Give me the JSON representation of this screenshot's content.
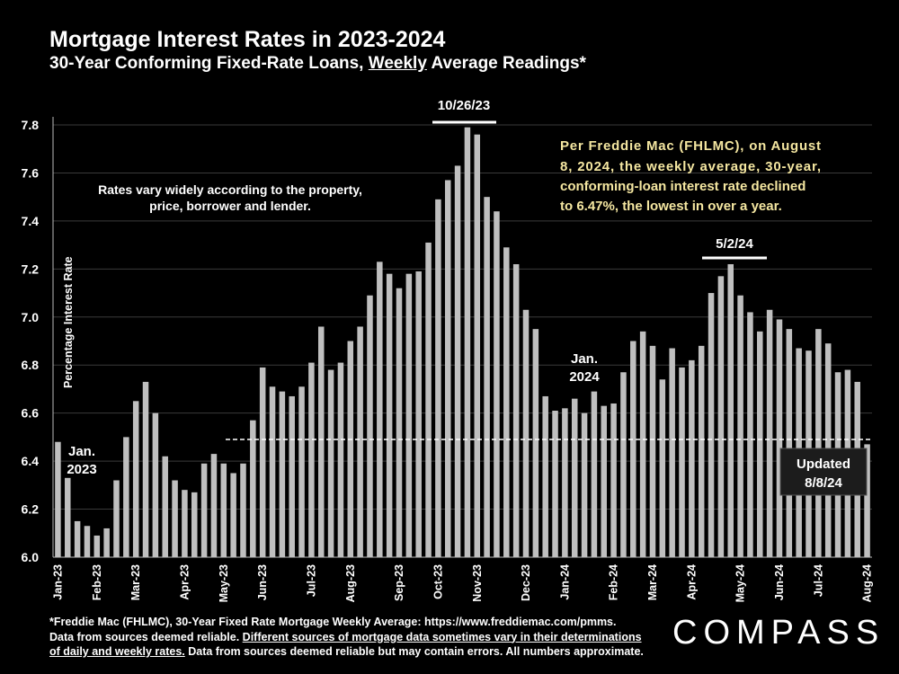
{
  "header": {
    "title": "Mortgage Interest Rates in 2023-2024",
    "subtitle_pre": "30-Year Conforming Fixed-Rate Loans, ",
    "subtitle_underlined": "Weekly",
    "subtitle_post": " Average Readings*"
  },
  "chart_data": {
    "type": "bar",
    "ylabel": "Percentage Interest Rate",
    "ylim": [
      6.0,
      7.8
    ],
    "yticks": [
      "6.0",
      "6.2",
      "6.4",
      "6.6",
      "6.8",
      "7.0",
      "7.2",
      "7.4",
      "7.6",
      "7.8"
    ],
    "grid": true,
    "bar_color": "#bfbfbf",
    "reference_line": 6.49,
    "month_labels": [
      {
        "label": "Jan-23",
        "index": 0
      },
      {
        "label": "Feb-23",
        "index": 4
      },
      {
        "label": "Mar-23",
        "index": 8
      },
      {
        "label": "Apr-23",
        "index": 13
      },
      {
        "label": "May-23",
        "index": 17
      },
      {
        "label": "Jun-23",
        "index": 21
      },
      {
        "label": "Jul-23",
        "index": 26
      },
      {
        "label": "Aug-23",
        "index": 30
      },
      {
        "label": "Sep-23",
        "index": 35
      },
      {
        "label": "Oct-23",
        "index": 39
      },
      {
        "label": "Nov-23",
        "index": 43
      },
      {
        "label": "Dec-23",
        "index": 48
      },
      {
        "label": "Jan-24",
        "index": 52
      },
      {
        "label": "Feb-24",
        "index": 57
      },
      {
        "label": "Mar-24",
        "index": 61
      },
      {
        "label": "Apr-24",
        "index": 65
      },
      {
        "label": "May-24",
        "index": 70
      },
      {
        "label": "Jun-24",
        "index": 74
      },
      {
        "label": "Jul-24",
        "index": 78
      },
      {
        "label": "Aug-24",
        "index": 83
      }
    ],
    "values": [
      6.48,
      6.33,
      6.15,
      6.13,
      6.09,
      6.12,
      6.32,
      6.5,
      6.65,
      6.73,
      6.6,
      6.42,
      6.32,
      6.28,
      6.27,
      6.39,
      6.43,
      6.39,
      6.35,
      6.39,
      6.57,
      6.79,
      6.71,
      6.69,
      6.67,
      6.71,
      6.81,
      6.96,
      6.78,
      6.81,
      6.9,
      6.96,
      7.09,
      7.23,
      7.18,
      7.12,
      7.18,
      7.19,
      7.31,
      7.49,
      7.57,
      7.63,
      7.79,
      7.76,
      7.5,
      7.44,
      7.29,
      7.22,
      7.03,
      6.95,
      6.67,
      6.61,
      6.62,
      6.66,
      6.6,
      6.69,
      6.63,
      6.64,
      6.77,
      6.9,
      6.94,
      6.88,
      6.74,
      6.87,
      6.79,
      6.82,
      6.88,
      7.1,
      7.17,
      7.22,
      7.09,
      7.02,
      6.94,
      7.03,
      6.99,
      6.95,
      6.87,
      6.86,
      6.95,
      6.89,
      6.77,
      6.78,
      6.73,
      6.47
    ],
    "annotations": {
      "peak_label": "10/26/23",
      "may_label": "5/2/24",
      "jan23_line1": "Jan.",
      "jan23_line2": "2023",
      "jan24_line1": "Jan.",
      "jan24_line2": "2024",
      "note_line1": "Rates vary widely according to the property,",
      "note_line2": "price, borrower and lender.",
      "fhlmc_lines": [
        "Per Freddie Mac (FHLMC), on August",
        "8, 2024, the weekly average, 30-year,",
        "conforming-loan interest rate declined",
        "to 6.47%, the lowest in over a year."
      ],
      "updated_line1": "Updated",
      "updated_line2": "8/8/24"
    }
  },
  "footer": {
    "line1": "*Freddie Mac (FHLMC), 30-Year Fixed Rate Mortgage Weekly Average:  https://www.freddiemac.com/pmms.",
    "line2_pre": "Data from sources deemed reliable. ",
    "line2_underlined": "Different sources of mortgage data sometimes vary in their determinations",
    "line3_underlined": "of daily and weekly rates.",
    "line3_post": " Data from sources deemed reliable but may contain errors. All numbers approximate."
  },
  "brand": {
    "logo_text": "COMPASS"
  }
}
